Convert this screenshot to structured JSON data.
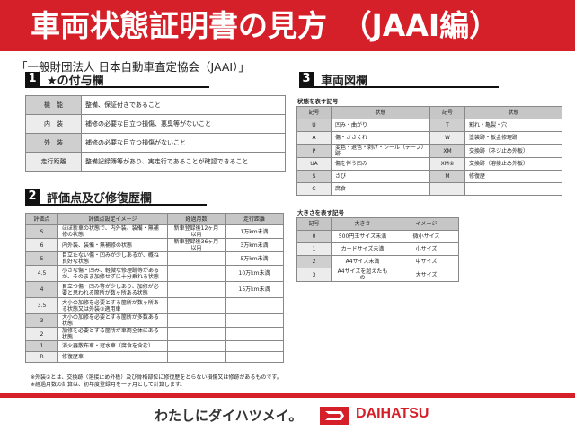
{
  "title": "車両状態証明書の見方　（JAAI編）",
  "organization": "「一般財団法人 日本自動車査定協会（JAAI）」",
  "section1": {
    "num": "1",
    "title": "★の付与欄",
    "rows": [
      {
        "key": "機　能",
        "desc": "整備、保証付きであること"
      },
      {
        "key": "内　装",
        "desc": "補修の必要な目立つ損傷、悪臭等がないこと"
      },
      {
        "key": "外　装",
        "desc": "補修の必要な目立つ損傷がないこと"
      },
      {
        "key": "走行距離",
        "desc": "整備記録簿等があり、実走行であることが確認できること"
      }
    ]
  },
  "section2": {
    "num": "2",
    "title": "評価点及び修復歴欄",
    "headers": [
      "評価点",
      "評価点設定イメージ",
      "経過月数",
      "走行距離"
    ],
    "rows": [
      [
        "S",
        "ほぼ新車の状態で、内外装、装備・無補修の状態",
        "新車登録後12ヶ月以内",
        "1万km未満"
      ],
      [
        "6",
        "内外装、装備・無補修の状態",
        "新車登録後36ヶ月以内",
        "3万km未満"
      ],
      [
        "5",
        "目立たない傷・凹みが少しあるが、概ね良好な状態",
        "",
        "5万km未満"
      ],
      [
        "4.5",
        "小さな傷・凹み、軽微な修理跡等があるが、そのまま加修せずに十分乗れる状態",
        "",
        "10万km未満"
      ],
      [
        "4",
        "目立つ傷・凹み等が少しあり、加修が必要と思われる箇所が数ヶ所ある状態",
        "",
        "15万km未満"
      ],
      [
        "3.5",
        "大小の加修を必要とする箇所が数ヶ所ある状態又は外装②適用車",
        "",
        ""
      ],
      [
        "3",
        "大小の加修を必要とする箇所が多数ある状態",
        "",
        ""
      ],
      [
        "2",
        "加修を必要とする箇所が車両全体にある状態",
        "",
        ""
      ],
      [
        "1",
        "消火器散布車・冠水車（腐食を含む）",
        "",
        ""
      ],
      [
        "R",
        "修復歴車",
        "",
        ""
      ]
    ]
  },
  "section3": {
    "num": "3",
    "title": "車両図欄",
    "state_label": "状態を表す記号",
    "state_headers": [
      "記号",
      "状態",
      "記号",
      "状態"
    ],
    "state_rows": [
      [
        "U",
        "凹み・曲がり",
        "T",
        "割れ・亀裂・穴"
      ],
      [
        "A",
        "傷・ささくれ",
        "W",
        "塗装跡・板金修理跡"
      ],
      [
        "P",
        "変色・退色・剥げ・シール（テープ）跡",
        "XM",
        "交換跡（ネジ止め外板）"
      ],
      [
        "UA",
        "傷を伴う凹み",
        "XM②",
        "交換跡（溶接止め外板）"
      ],
      [
        "S",
        "さび",
        "M",
        "修復歴"
      ],
      [
        "C",
        "腐食",
        "",
        ""
      ]
    ],
    "size_label": "大きさを表す記号",
    "size_headers": [
      "記号",
      "大きさ",
      "イメージ"
    ],
    "size_rows": [
      [
        "0",
        "500円玉サイズ未満",
        "微小サイズ"
      ],
      [
        "1",
        "カードサイズ未満",
        "小サイズ"
      ],
      [
        "2",
        "A4サイズ未満",
        "中サイズ"
      ],
      [
        "3",
        "A4サイズを超えたもの",
        "大サイズ"
      ]
    ]
  },
  "notes": [
    "※外装②とは、交換跡（溶接止め外板）及び骨格部位に修復歴をとらない損傷又は修跡があるものです。",
    "※経過月数の計算は、初年度登録月を一ヶ月として計算します。"
  ],
  "footer": {
    "slogan": "わたしにダイハツメイ。",
    "brand": "DAIHATSU",
    "brand_color": "#d52029"
  }
}
